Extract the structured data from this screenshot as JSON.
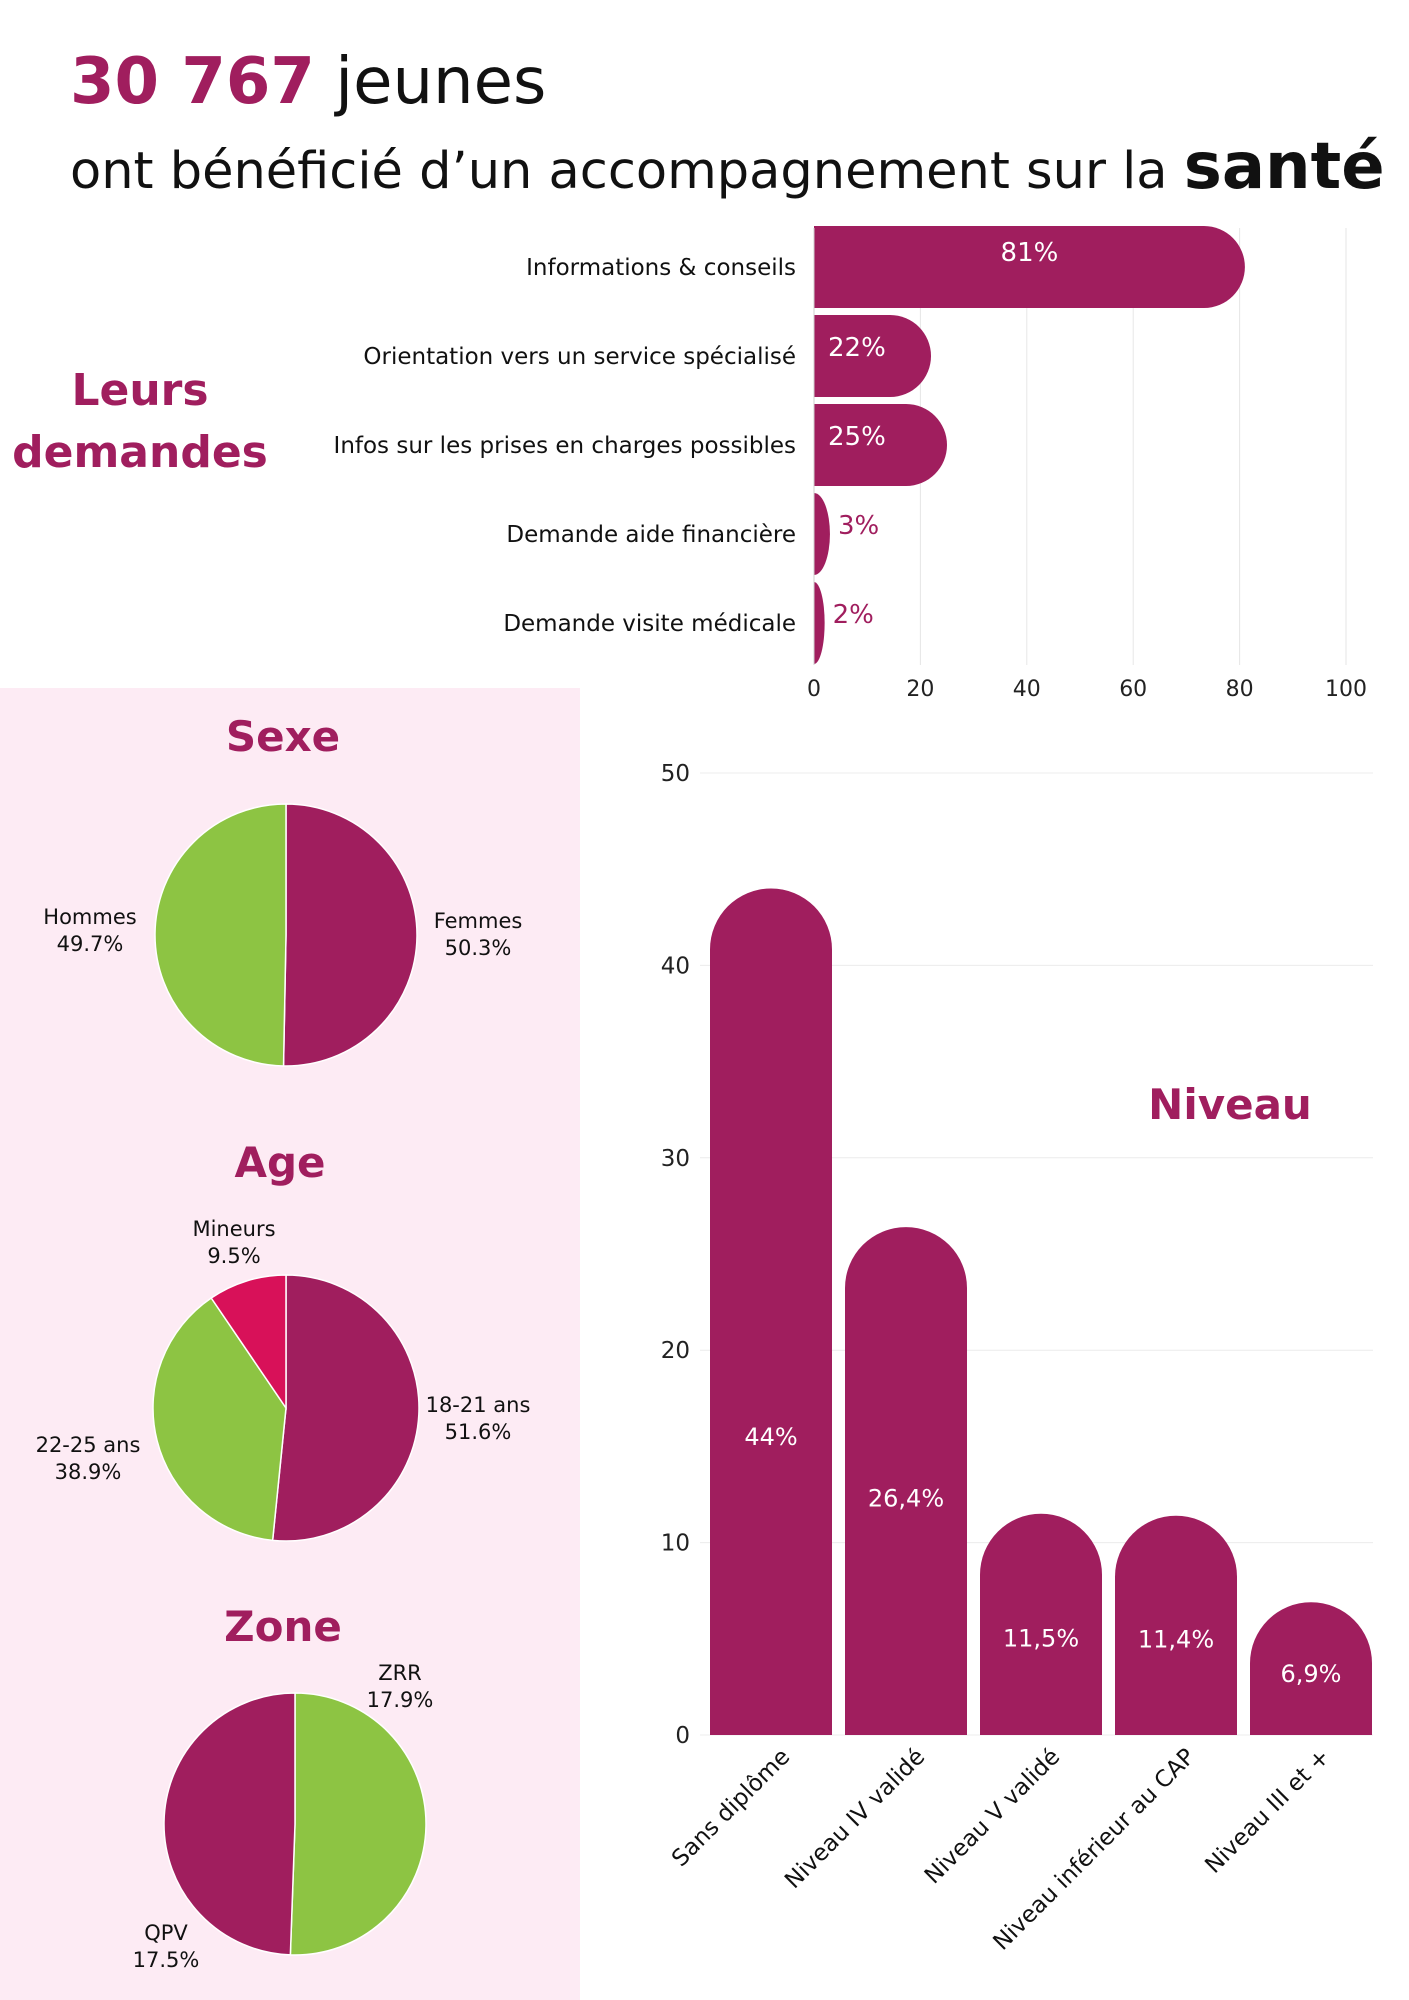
{
  "header": {
    "count": "30 767",
    "count_suffix": " jeunes",
    "subtitle": "ont bénéficié d’un accompagnement sur la ",
    "subtitle_strong": "santé"
  },
  "sections": {
    "demandes_line1": "Leurs",
    "demandes_line2": "demandes",
    "sexe": "Sexe",
    "age": "Age",
    "zone": "Zone",
    "niveau": "Niveau"
  },
  "colors": {
    "primary": "#a01e5e",
    "green": "#8dc443",
    "red": "#d81159",
    "panel": "#fdebf4"
  },
  "chart_data": [
    {
      "type": "bar",
      "orientation": "horizontal",
      "categories": [
        "Informations & conseils",
        "Orientation vers un service spécialisé",
        "Infos sur les prises en charges possibles",
        "Demande aide financière",
        "Demande visite médicale"
      ],
      "values": [
        81,
        22,
        25,
        3,
        2
      ],
      "data_labels": [
        "81%",
        "22%",
        "25%",
        "3%",
        "2%"
      ],
      "xlim": [
        0,
        100
      ],
      "xticks": [
        "0",
        "20",
        "40",
        "60",
        "80",
        "100"
      ],
      "grid": true
    },
    {
      "type": "pie",
      "title": "Sexe",
      "labels": [
        "Femmes",
        "Hommes"
      ],
      "values": [
        50.3,
        49.7
      ],
      "value_labels": [
        "50.3%",
        "49.7%"
      ],
      "colors": [
        "#a01e5e",
        "#8dc443"
      ]
    },
    {
      "type": "pie",
      "title": "Age",
      "labels": [
        "18-21 ans",
        "22-25 ans",
        "Mineurs"
      ],
      "values": [
        51.6,
        38.9,
        9.5
      ],
      "value_labels": [
        "51.6%",
        "38.9%",
        "9.5%"
      ],
      "colors": [
        "#a01e5e",
        "#8dc443",
        "#d81159"
      ]
    },
    {
      "type": "pie",
      "title": "Zone",
      "labels": [
        "ZRR",
        "QPV"
      ],
      "values": [
        17.9,
        17.5
      ],
      "value_labels": [
        "17.9%",
        "17.5%"
      ],
      "colors": [
        "#8dc443",
        "#a01e5e"
      ]
    },
    {
      "type": "bar",
      "orientation": "vertical",
      "title": "Niveau",
      "categories": [
        "Sans diplôme",
        "Niveau IV validé",
        "Niveau V validé",
        "Niveau inférieur au CAP",
        "Niveau III et +"
      ],
      "values": [
        44,
        26.4,
        11.5,
        11.4,
        6.9
      ],
      "data_labels": [
        "44%",
        "26,4%",
        "11,5%",
        "11,4%",
        "6,9%"
      ],
      "ylim": [
        0,
        50
      ],
      "yticks": [
        "0",
        "10",
        "20",
        "30",
        "40",
        "50"
      ],
      "grid": true
    }
  ]
}
